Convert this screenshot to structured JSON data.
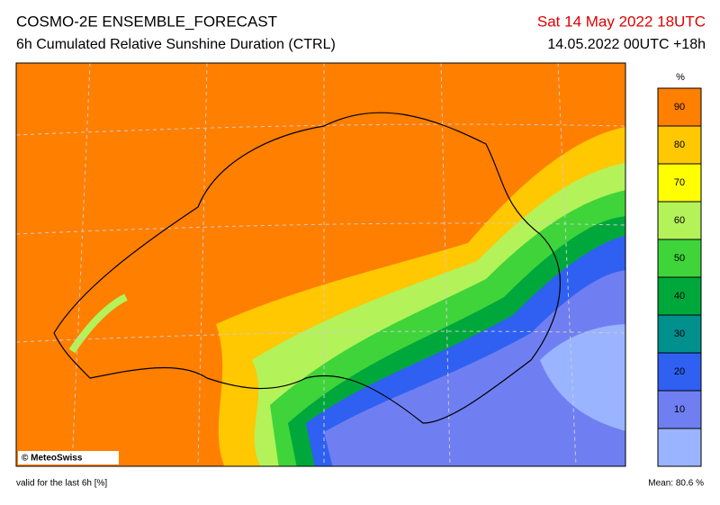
{
  "header": {
    "title": "COSMO-2E ENSEMBLE_FORECAST",
    "subtitle": "6h Cumulated Relative Sunshine Duration (CTRL)",
    "valid_time": "Sat 14 May 2022 18UTC",
    "run": "14.05.2022 00UTC +18h"
  },
  "legend": {
    "unit": "%",
    "lim": [
      0,
      100
    ],
    "ticks": [
      10,
      20,
      30,
      40,
      50,
      60,
      70,
      80,
      90
    ],
    "colors": [
      "#9ab4ff",
      "#6f7ff2",
      "#2f60f2",
      "#00908e",
      "#00a83c",
      "#3fd43a",
      "#b4f25a",
      "#ffff00",
      "#ffc800",
      "#ff7f00"
    ]
  },
  "credit": "© MeteoSwiss",
  "footer": {
    "note": "valid for the last 6h [%]",
    "mean": "Mean:  80.6 %"
  }
}
